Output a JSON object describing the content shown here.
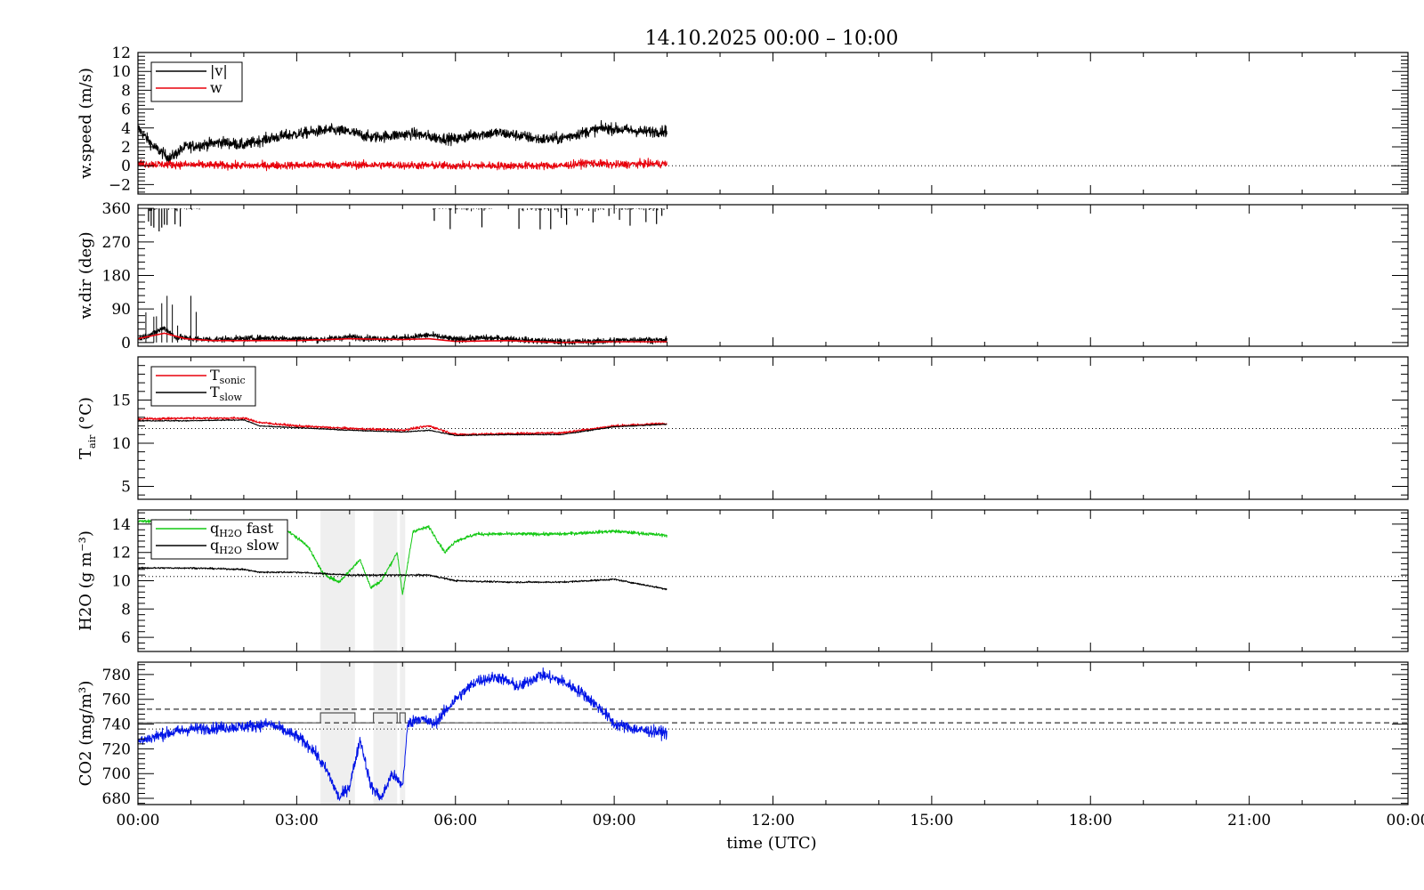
{
  "title": "14.10.2025 00:00 – 10:00",
  "x_axis": {
    "label": "time (UTC)",
    "ticks": [
      "00:00",
      "03:00",
      "06:00",
      "09:00",
      "12:00",
      "15:00",
      "18:00",
      "21:00",
      "00:00"
    ],
    "range_hours": [
      0,
      24
    ],
    "data_end_hours": 10
  },
  "colors": {
    "black": "#000000",
    "red": "#e8000b",
    "green": "#14c814",
    "blue": "#0014e6",
    "shade": "#efefef",
    "gray": "#555555"
  },
  "shaded_intervals_hours": [
    [
      3.45,
      4.1
    ],
    [
      4.45,
      4.9
    ],
    [
      4.95,
      5.05
    ]
  ],
  "chart_data": [
    {
      "type": "line",
      "ylabel": "w.speed (m/s)",
      "ylim": [
        -3,
        12
      ],
      "yticks": [
        -2,
        0,
        2,
        4,
        6,
        8,
        10,
        12
      ],
      "ytick_labels": [
        "−2",
        "0",
        "2",
        "4",
        "6",
        "8",
        "10",
        "12"
      ],
      "ref_dotted": 0,
      "legend": [
        {
          "label": "|v|",
          "color": "#000000"
        },
        {
          "label": "w",
          "color": "#e8000b"
        }
      ],
      "series": [
        {
          "name": "|v|",
          "color": "#000000",
          "noise": 0.5,
          "x": [
            0,
            0.3,
            0.6,
            0.9,
            1.2,
            1.6,
            2.0,
            2.4,
            2.8,
            3.2,
            3.6,
            4.0,
            4.4,
            4.8,
            5.2,
            5.6,
            6.0,
            6.4,
            6.8,
            7.2,
            7.6,
            8.0,
            8.4,
            8.8,
            9.2,
            9.6,
            10.0
          ],
          "y": [
            4,
            2,
            0.8,
            2,
            2.2,
            2.5,
            2.2,
            2.8,
            3.2,
            3.5,
            3.8,
            3.6,
            3.0,
            3.2,
            3.4,
            3.0,
            2.8,
            3.3,
            3.5,
            3.2,
            2.8,
            2.9,
            3.5,
            4.0,
            3.8,
            3.6,
            3.7
          ]
        },
        {
          "name": "w",
          "color": "#e8000b",
          "noise": 0.35,
          "x": [
            0,
            2,
            4,
            6,
            8,
            8.5,
            9,
            9.5,
            10
          ],
          "y": [
            0.2,
            0,
            0.1,
            0,
            0,
            0.3,
            0.1,
            0.2,
            0.2
          ]
        }
      ]
    },
    {
      "type": "line",
      "ylabel": "w.dir (deg)",
      "ylim": [
        -10,
        370
      ],
      "yticks": [
        0,
        90,
        180,
        270,
        360
      ],
      "ytick_labels": [
        "0",
        "90",
        "180",
        "270",
        "360"
      ],
      "series": [
        {
          "name": "dir",
          "color": "#000000",
          "noise": 7,
          "x": [
            0,
            0.3,
            0.5,
            0.7,
            1.0,
            1.4,
            2.0,
            2.5,
            3.0,
            3.5,
            4.0,
            4.5,
            5.0,
            5.5,
            6.0,
            6.5,
            7.0,
            7.5,
            8.0,
            8.5,
            9.0,
            9.5,
            10.0
          ],
          "y": [
            10,
            25,
            40,
            15,
            10,
            8,
            10,
            12,
            10,
            8,
            15,
            10,
            12,
            20,
            8,
            12,
            10,
            5,
            2,
            2,
            5,
            8,
            5
          ]
        },
        {
          "name": "dir_smooth",
          "color": "#e8000b",
          "noise": 0,
          "x": [
            0,
            0.5,
            0.9,
            1.4,
            2.0,
            3.0,
            4.0,
            5.0,
            5.5,
            6.0,
            7.0,
            8.0,
            9.0,
            10.0
          ],
          "y": [
            10,
            25,
            10,
            5,
            5,
            5,
            10,
            8,
            10,
            3,
            5,
            0,
            2,
            2
          ]
        }
      ],
      "spikes": {
        "color": "#000000",
        "top": [
          0.2,
          0.25,
          0.3,
          0.4,
          0.45,
          0.5,
          0.55,
          0.7,
          0.8,
          5.6,
          5.9,
          6.5,
          7.2,
          7.6,
          7.8,
          8.0,
          8.1,
          8.3,
          8.6,
          8.9,
          9.1,
          9.3,
          9.6,
          9.8,
          9.9
        ],
        "bottom": [
          0.15,
          0.3,
          0.35,
          0.45,
          0.55,
          0.65,
          0.75,
          1.0,
          1.1
        ]
      }
    },
    {
      "type": "line",
      "ylabel": "T_air (°C)",
      "ylabel_main": "T",
      "ylabel_sub": "air",
      "ylabel_unit": "(°C)",
      "ylim": [
        3.5,
        20
      ],
      "yticks": [
        5,
        10,
        15
      ],
      "ytick_labels": [
        "5",
        "10",
        "15"
      ],
      "ref_dotted": 11.7,
      "legend": [
        {
          "label": "T",
          "sub": "sonic",
          "color": "#e8000b"
        },
        {
          "label": "T",
          "sub": "slow",
          "color": "#000000"
        }
      ],
      "series": [
        {
          "name": "T_sonic",
          "color": "#e8000b",
          "noise": 0.12,
          "x": [
            0,
            1,
            2,
            2.3,
            3,
            4,
            5,
            5.5,
            6,
            7,
            8,
            9,
            10
          ],
          "y": [
            12.8,
            12.9,
            12.9,
            12.4,
            12.0,
            11.7,
            11.5,
            12.0,
            11.0,
            11.1,
            11.2,
            12.0,
            12.3
          ]
        },
        {
          "name": "T_slow",
          "color": "#000000",
          "noise": 0.05,
          "x": [
            0,
            1,
            2,
            2.3,
            3,
            4,
            5,
            5.5,
            6,
            7,
            8,
            9,
            10
          ],
          "y": [
            12.6,
            12.6,
            12.7,
            12.0,
            11.8,
            11.5,
            11.3,
            11.5,
            10.9,
            11.0,
            11.0,
            11.9,
            12.2
          ]
        }
      ]
    },
    {
      "type": "line",
      "ylabel": "H2O (g m⁻³)",
      "ylim": [
        5,
        15
      ],
      "yticks": [
        6,
        8,
        10,
        12,
        14
      ],
      "ytick_labels": [
        "6",
        "8",
        "10",
        "12",
        "14"
      ],
      "ref_dotted": 10.3,
      "legend": [
        {
          "label": "q",
          "sub": "H2O",
          "suffix": " fast",
          "color": "#14c814"
        },
        {
          "label": "q",
          "sub": "H2O",
          "suffix": " slow",
          "color": "#000000"
        }
      ],
      "series": [
        {
          "name": "q_H2O fast",
          "color": "#14c814",
          "noise": 0.1,
          "x": [
            0,
            1,
            2,
            2.8,
            3.2,
            3.5,
            3.8,
            4.2,
            4.4,
            4.6,
            4.9,
            5.0,
            5.2,
            5.5,
            5.8,
            6.0,
            6.4,
            7.0,
            8.0,
            9.0,
            10.0
          ],
          "y": [
            14.2,
            14.2,
            14.0,
            13.6,
            12.5,
            10.5,
            9.9,
            11.5,
            9.5,
            10.0,
            12.0,
            9.0,
            13.5,
            13.8,
            12.0,
            12.8,
            13.3,
            13.3,
            13.3,
            13.5,
            13.2
          ]
        },
        {
          "name": "q_H2O slow",
          "color": "#000000",
          "noise": 0.05,
          "x": [
            0,
            1,
            2,
            2.3,
            3,
            4,
            5,
            5.5,
            6,
            7,
            8,
            9,
            10
          ],
          "y": [
            10.9,
            10.9,
            10.8,
            10.6,
            10.6,
            10.4,
            10.4,
            10.4,
            10.0,
            9.9,
            9.9,
            10.1,
            9.4
          ]
        }
      ]
    },
    {
      "type": "line",
      "ylabel": "CO2 (mg/m³)",
      "ylim": [
        675,
        790
      ],
      "yticks": [
        680,
        700,
        720,
        740,
        760,
        780
      ],
      "ytick_labels": [
        "680",
        "700",
        "720",
        "740",
        "760",
        "780"
      ],
      "ref_dotted": 736,
      "ref_dashed": [
        741,
        752
      ],
      "step": {
        "color": "#555555",
        "low": 741,
        "high": 749,
        "x_end": 10,
        "high_intervals": [
          [
            3.45,
            4.1
          ],
          [
            4.45,
            4.9
          ],
          [
            4.95,
            5.05
          ]
        ]
      },
      "series": [
        {
          "name": "CO2",
          "color": "#0014e6",
          "noise": 4,
          "x": [
            0,
            0.5,
            1.0,
            1.5,
            2.0,
            2.5,
            3.0,
            3.3,
            3.6,
            3.8,
            4.0,
            4.2,
            4.4,
            4.6,
            4.8,
            5.0,
            5.1,
            5.3,
            5.6,
            6.0,
            6.4,
            6.8,
            7.2,
            7.6,
            8.0,
            8.4,
            8.8,
            9.0,
            9.5,
            10.0
          ],
          "y": [
            726,
            732,
            736,
            737,
            738,
            740,
            730,
            720,
            700,
            680,
            690,
            728,
            690,
            680,
            700,
            690,
            740,
            745,
            740,
            760,
            775,
            778,
            770,
            780,
            775,
            765,
            750,
            740,
            735,
            733
          ]
        }
      ]
    }
  ]
}
